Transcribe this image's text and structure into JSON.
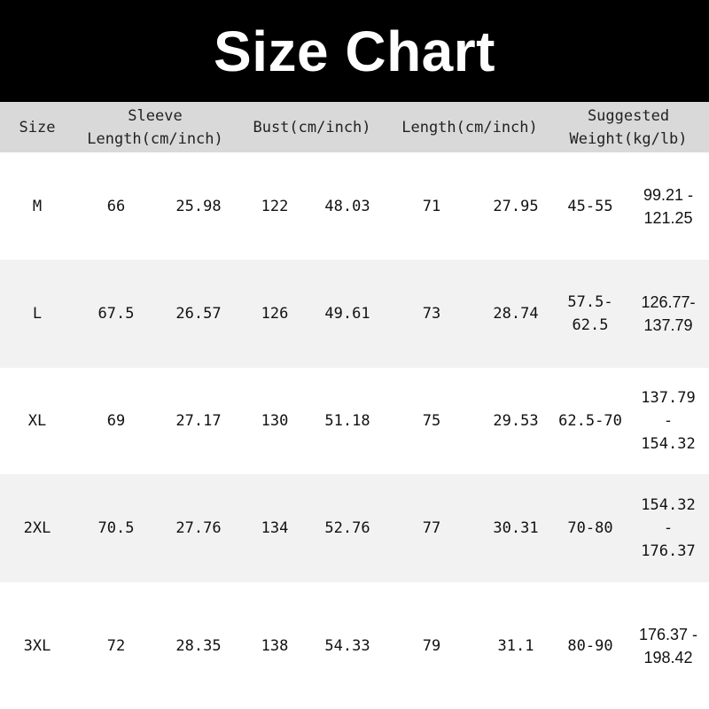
{
  "title": "Size Chart",
  "header": [
    "Size",
    "Sleeve\nLength(cm/inch)",
    "Bust(cm/inch)",
    "Length(cm/inch)",
    "Suggested\nWeight(kg/lb)"
  ],
  "row_background_colors": [
    "#ffffff",
    "#f2f2f2"
  ],
  "header_background": "#d9d9d9",
  "rows": [
    {
      "size": "M",
      "sleeve_cm": "66",
      "sleeve_in": "25.98",
      "bust_cm": "122",
      "bust_in": "48.03",
      "length_cm": "71",
      "length_in": "27.95",
      "weight_kg": "45-55",
      "weight_lb": "99.21 -\n121.25"
    },
    {
      "size": "L",
      "sleeve_cm": "67.5",
      "sleeve_in": "26.57",
      "bust_cm": "126",
      "bust_in": "49.61",
      "length_cm": "73",
      "length_in": "28.74",
      "weight_kg": "57.5-\n62.5",
      "weight_lb": "126.77-\n137.79"
    },
    {
      "size": "XL",
      "sleeve_cm": "69",
      "sleeve_in": "27.17",
      "bust_cm": "130",
      "bust_in": "51.18",
      "length_cm": "75",
      "length_in": "29.53",
      "weight_kg": "62.5-70",
      "weight_lb": "137.79\n-\n154.32"
    },
    {
      "size": "2XL",
      "sleeve_cm": "70.5",
      "sleeve_in": "27.76",
      "bust_cm": "134",
      "bust_in": "52.76",
      "length_cm": "77",
      "length_in": "30.31",
      "weight_kg": "70-80",
      "weight_lb": "154.32\n-\n176.37"
    },
    {
      "size": "3XL",
      "sleeve_cm": "72",
      "sleeve_in": "28.35",
      "bust_cm": "138",
      "bust_in": "54.33",
      "length_cm": "79",
      "length_in": "31.1",
      "weight_kg": "80-90",
      "weight_lb": "176.37 -\n198.42"
    }
  ]
}
